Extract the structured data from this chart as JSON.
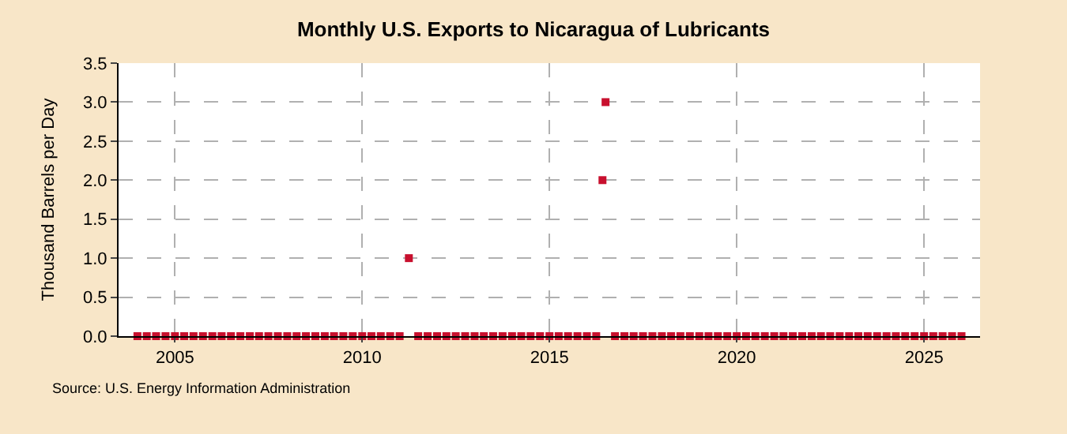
{
  "chart_data": {
    "type": "scatter",
    "title": "Monthly U.S. Exports to Nicaragua of Lubricants",
    "ylabel": "Thousand Barrels per Day",
    "annotations": [
      "Source: U.S. Energy Information Administration"
    ],
    "x": [
      "2004-01",
      "2004-04",
      "2004-07",
      "2004-10",
      "2005-01",
      "2005-04",
      "2005-07",
      "2005-10",
      "2006-01",
      "2006-04",
      "2006-07",
      "2006-10",
      "2007-01",
      "2007-04",
      "2007-07",
      "2007-10",
      "2008-01",
      "2008-04",
      "2008-07",
      "2008-10",
      "2009-01",
      "2009-04",
      "2009-07",
      "2009-10",
      "2010-01",
      "2010-04",
      "2010-07",
      "2010-10",
      "2011-01",
      "2011-04",
      "2011-07",
      "2011-10",
      "2012-01",
      "2012-04",
      "2012-07",
      "2012-10",
      "2013-01",
      "2013-04",
      "2013-07",
      "2013-10",
      "2014-01",
      "2014-04",
      "2014-07",
      "2014-10",
      "2015-01",
      "2015-04",
      "2015-07",
      "2015-10",
      "2016-01",
      "2016-04",
      "2016-06",
      "2016-07",
      "2016-10",
      "2017-01",
      "2017-04",
      "2017-07",
      "2017-10",
      "2018-01",
      "2018-04",
      "2018-07",
      "2018-10",
      "2019-01",
      "2019-04",
      "2019-07",
      "2019-10",
      "2020-01",
      "2020-04",
      "2020-07",
      "2020-10",
      "2021-01",
      "2021-04",
      "2021-07",
      "2021-10",
      "2022-01",
      "2022-04",
      "2022-07",
      "2022-10",
      "2023-01",
      "2023-04",
      "2023-07",
      "2023-10",
      "2024-01",
      "2024-04",
      "2024-07",
      "2024-10",
      "2025-01",
      "2025-04",
      "2025-07",
      "2025-10",
      "2026-01"
    ],
    "series": [
      {
        "color": "#c8102e",
        "values": [
          0,
          0,
          0,
          0,
          0,
          0,
          0,
          0,
          0,
          0,
          0,
          0,
          0,
          0,
          0,
          0,
          0,
          0,
          0,
          0,
          0,
          0,
          0,
          0,
          0,
          0,
          0,
          0,
          0,
          1,
          0,
          0,
          0,
          0,
          0,
          0,
          0,
          0,
          0,
          0,
          0,
          0,
          0,
          0,
          0,
          0,
          0,
          0,
          0,
          0,
          2,
          3,
          0,
          0,
          0,
          0,
          0,
          0,
          0,
          0,
          0,
          0,
          0,
          0,
          0,
          0,
          0,
          0,
          0,
          0,
          0,
          0,
          0,
          0,
          0,
          0,
          0,
          0,
          0,
          0,
          0,
          0,
          0,
          0,
          0,
          0,
          0,
          0,
          0,
          0
        ]
      }
    ],
    "xlim": [
      "2003-07",
      "2026-07"
    ],
    "xticks": [
      {
        "value": "2005-01",
        "label": "2005"
      },
      {
        "value": "2010-01",
        "label": "2010"
      },
      {
        "value": "2015-01",
        "label": "2015"
      },
      {
        "value": "2020-01",
        "label": "2020"
      },
      {
        "value": "2025-01",
        "label": "2025"
      }
    ],
    "ylim": [
      0,
      3.5
    ],
    "yticks": [
      {
        "value": 0,
        "label": "0.0"
      },
      {
        "value": 0.5,
        "label": "0.5"
      },
      {
        "value": 1,
        "label": "1.0"
      },
      {
        "value": 1.5,
        "label": "1.5"
      },
      {
        "value": 2,
        "label": "2.0"
      },
      {
        "value": 2.5,
        "label": "2.5"
      },
      {
        "value": 3,
        "label": "3.0"
      },
      {
        "value": 3.5,
        "label": "3.5"
      }
    ],
    "grid": true,
    "marker": "square"
  }
}
